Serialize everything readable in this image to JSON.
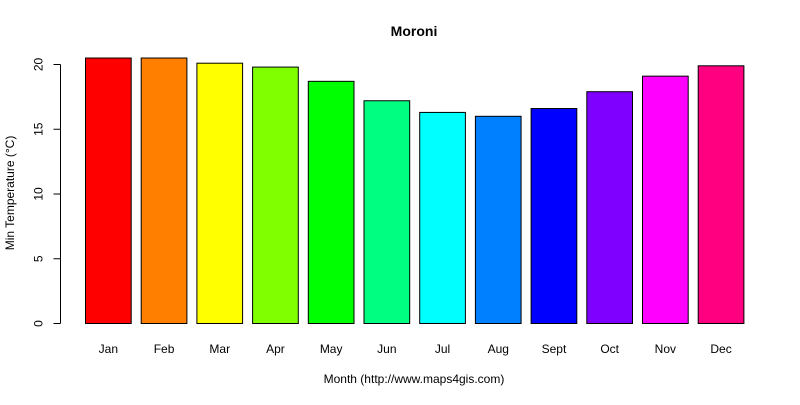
{
  "chart_data": {
    "type": "bar",
    "title": "Moroni",
    "xlabel": "Month (http://www.maps4gis.com)",
    "ylabel": "Min Temperature (°C)",
    "categories": [
      "Jan",
      "Feb",
      "Mar",
      "Apr",
      "May",
      "Jun",
      "Jul",
      "Aug",
      "Sept",
      "Oct",
      "Nov",
      "Dec"
    ],
    "values": [
      20.5,
      20.5,
      20.1,
      19.8,
      18.7,
      17.2,
      16.3,
      16.0,
      16.6,
      17.9,
      19.1,
      19.9
    ],
    "bar_colors": [
      "#FF0000",
      "#FF8000",
      "#FFFF00",
      "#80FF00",
      "#00FF00",
      "#00FF80",
      "#00FFFF",
      "#0080FF",
      "#0000FF",
      "#8000FF",
      "#FF00FF",
      "#FF0080"
    ],
    "y_ticks": [
      0,
      5,
      10,
      15,
      20
    ],
    "ylim": [
      0,
      21
    ],
    "grid": false,
    "legend": "none"
  }
}
